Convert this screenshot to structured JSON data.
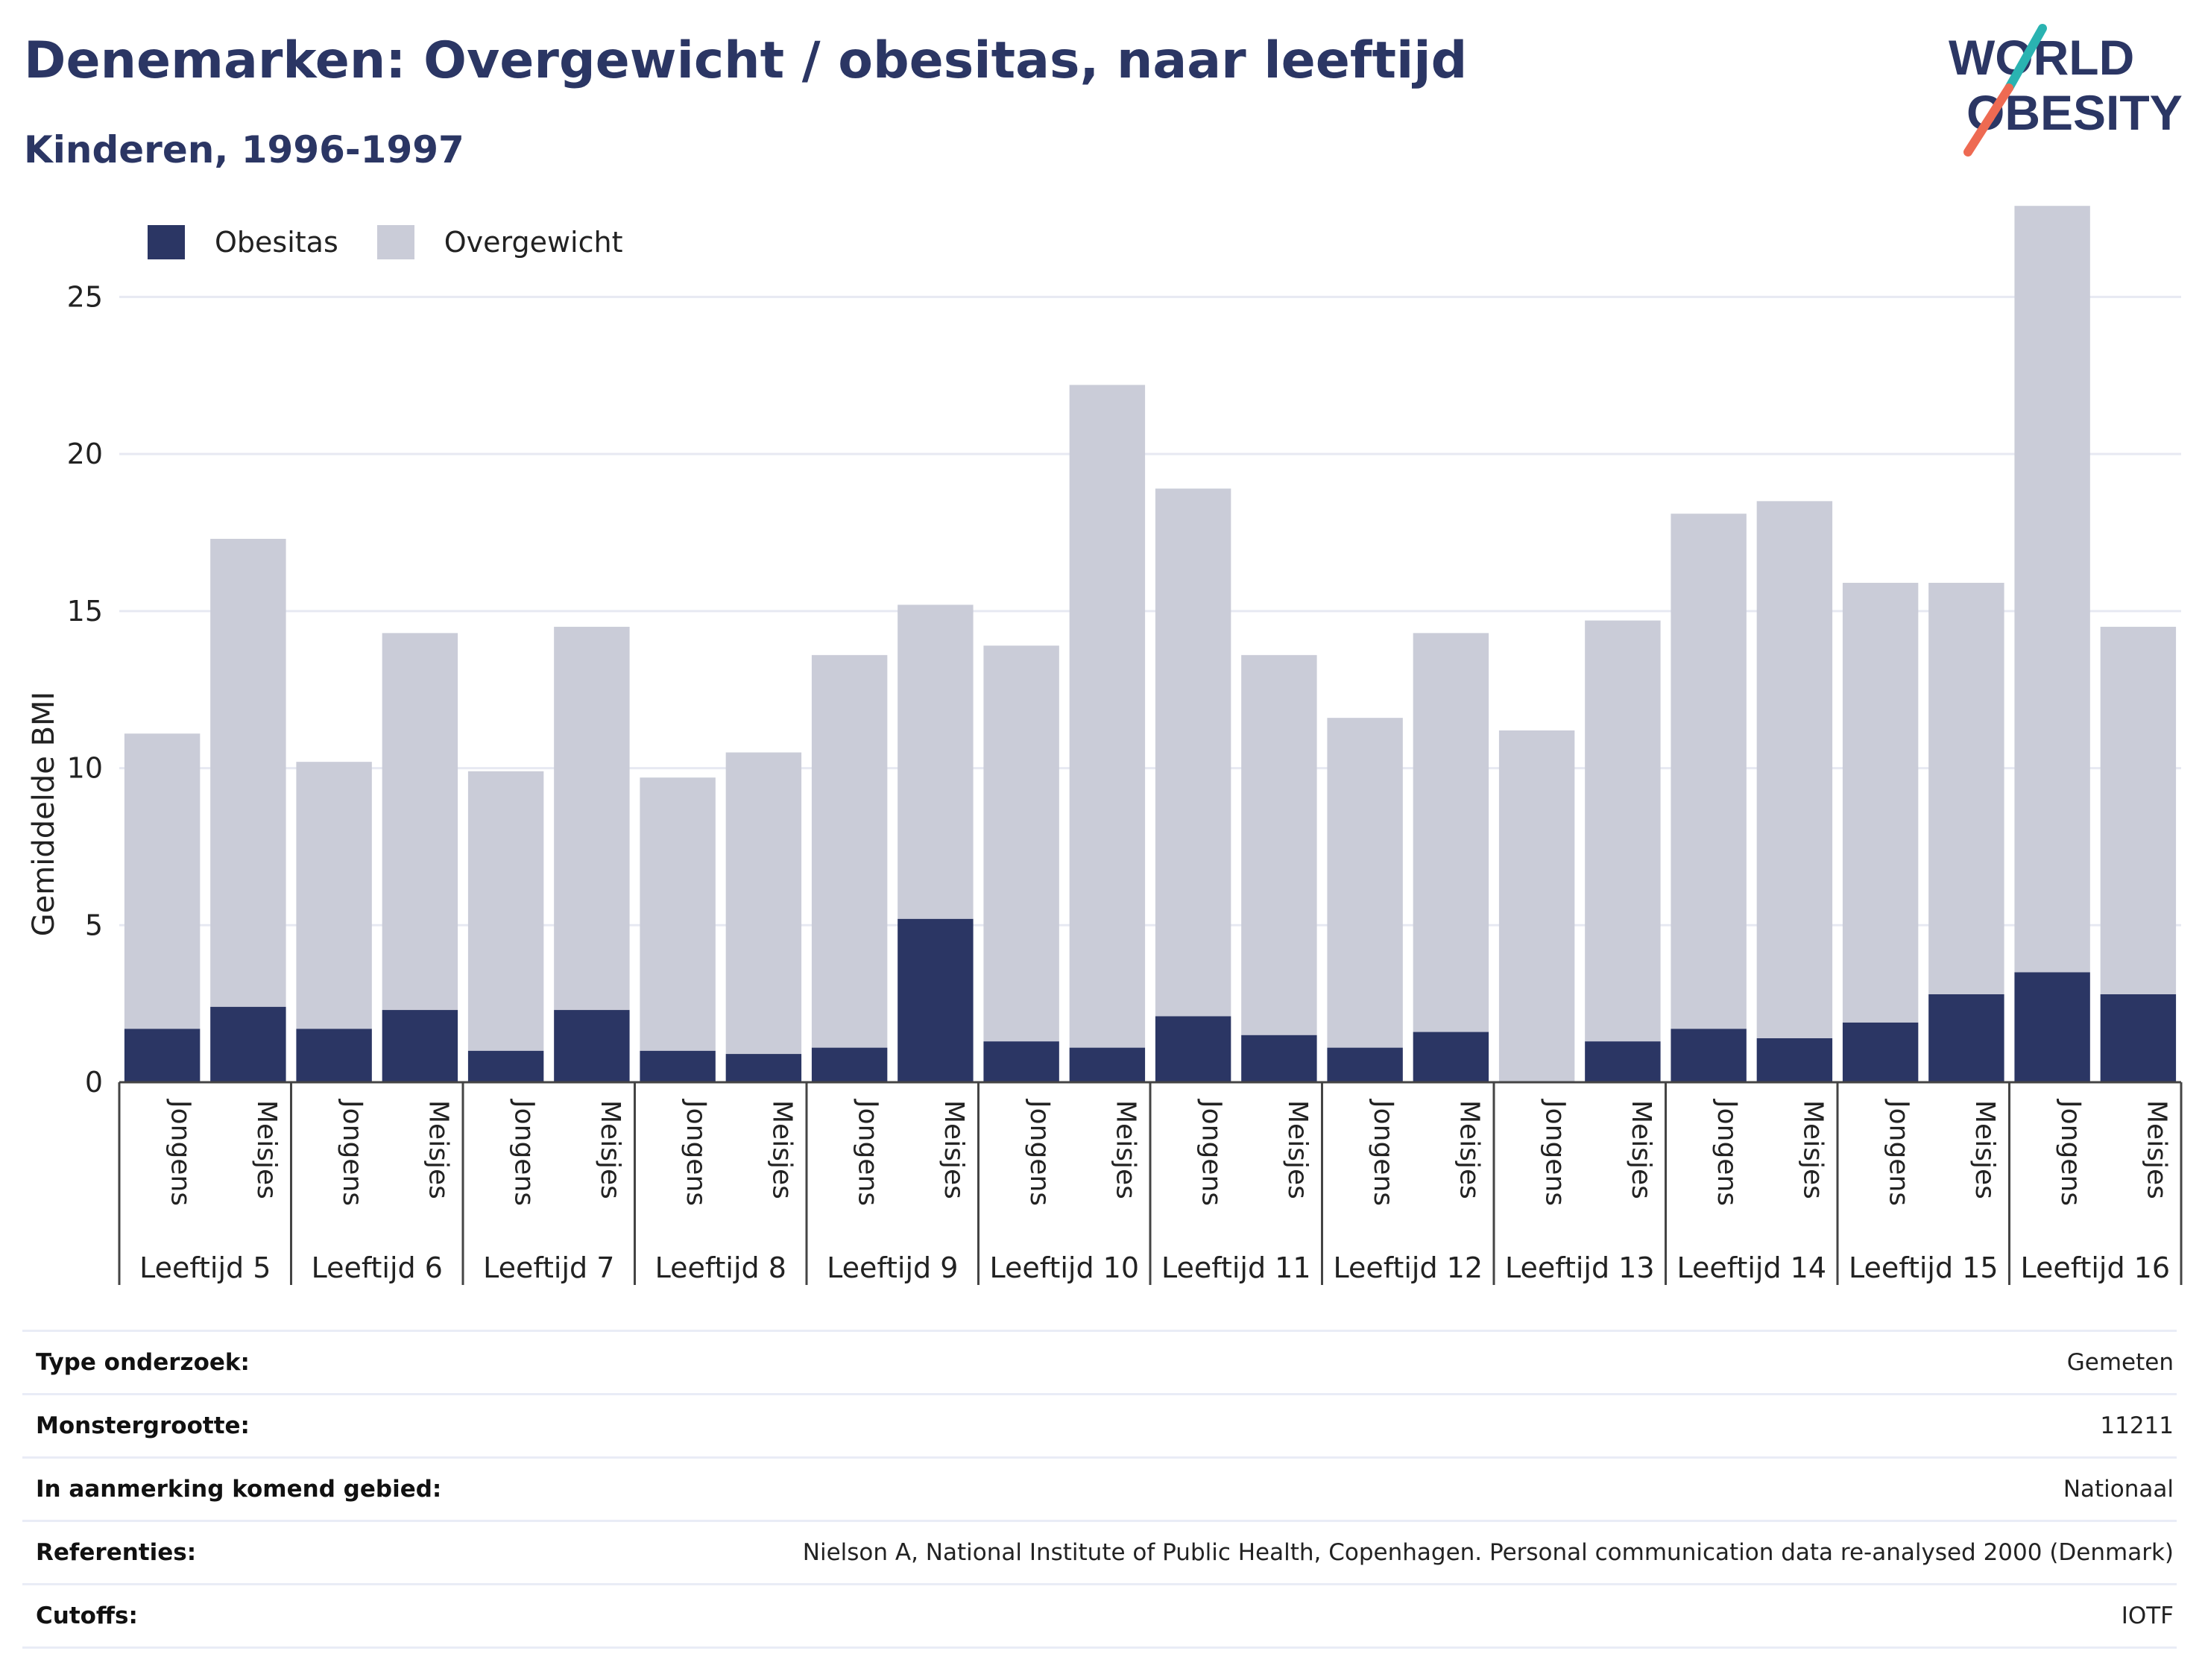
{
  "title": "Denemarken: Overgewicht / obesitas, naar leeftijd",
  "subtitle": "Kinderen, 1996-1997",
  "logo": {
    "line1": "WORLD",
    "line2": "OBESITY"
  },
  "colors": {
    "obesity": "#2b3664",
    "overweight": "#caccd8",
    "title": "#2b3664",
    "grid": "#e7e9f2",
    "logo_teal": "#2ab3b1",
    "logo_coral": "#ee6a52"
  },
  "chart_data": {
    "type": "bar",
    "stacked": true,
    "ylabel": "Gemiddelde BMI",
    "ylim": [
      0,
      28
    ],
    "yticks": [
      0,
      5,
      10,
      15,
      20,
      25
    ],
    "grid": true,
    "legend_position": "top-left",
    "groups": [
      "Leeftijd 5",
      "Leeftijd 6",
      "Leeftijd 7",
      "Leeftijd 8",
      "Leeftijd 9",
      "Leeftijd 10",
      "Leeftijd 11",
      "Leeftijd 12",
      "Leeftijd 13",
      "Leeftijd 14",
      "Leeftijd 15",
      "Leeftijd 16"
    ],
    "subcategories": [
      "Jongens",
      "Meisjes"
    ],
    "series": [
      {
        "name": "Obesitas",
        "values": [
          1.7,
          2.4,
          1.7,
          2.3,
          1.0,
          2.3,
          1.0,
          0.9,
          1.1,
          5.2,
          1.3,
          1.1,
          2.1,
          1.5,
          1.1,
          1.6,
          0.0,
          1.3,
          1.7,
          1.4,
          1.9,
          2.8,
          3.5,
          2.8
        ]
      },
      {
        "name": "Overgewicht",
        "values": [
          9.4,
          14.9,
          8.5,
          12.0,
          8.9,
          12.2,
          8.7,
          9.6,
          12.5,
          10.0,
          12.6,
          21.1,
          16.8,
          12.1,
          10.5,
          12.7,
          11.2,
          13.4,
          16.4,
          17.1,
          14.0,
          13.1,
          24.4,
          11.7
        ]
      }
    ]
  },
  "info": [
    {
      "label": "Type onderzoek:",
      "value": "Gemeten"
    },
    {
      "label": "Monstergrootte:",
      "value": "11211"
    },
    {
      "label": "In aanmerking komend gebied:",
      "value": "Nationaal"
    },
    {
      "label": "Referenties:",
      "value": "Nielson A, National Institute of Public Health, Copenhagen. Personal communication data re-analysed 2000 (Denmark)"
    },
    {
      "label": "Cutoffs:",
      "value": "IOTF"
    }
  ]
}
